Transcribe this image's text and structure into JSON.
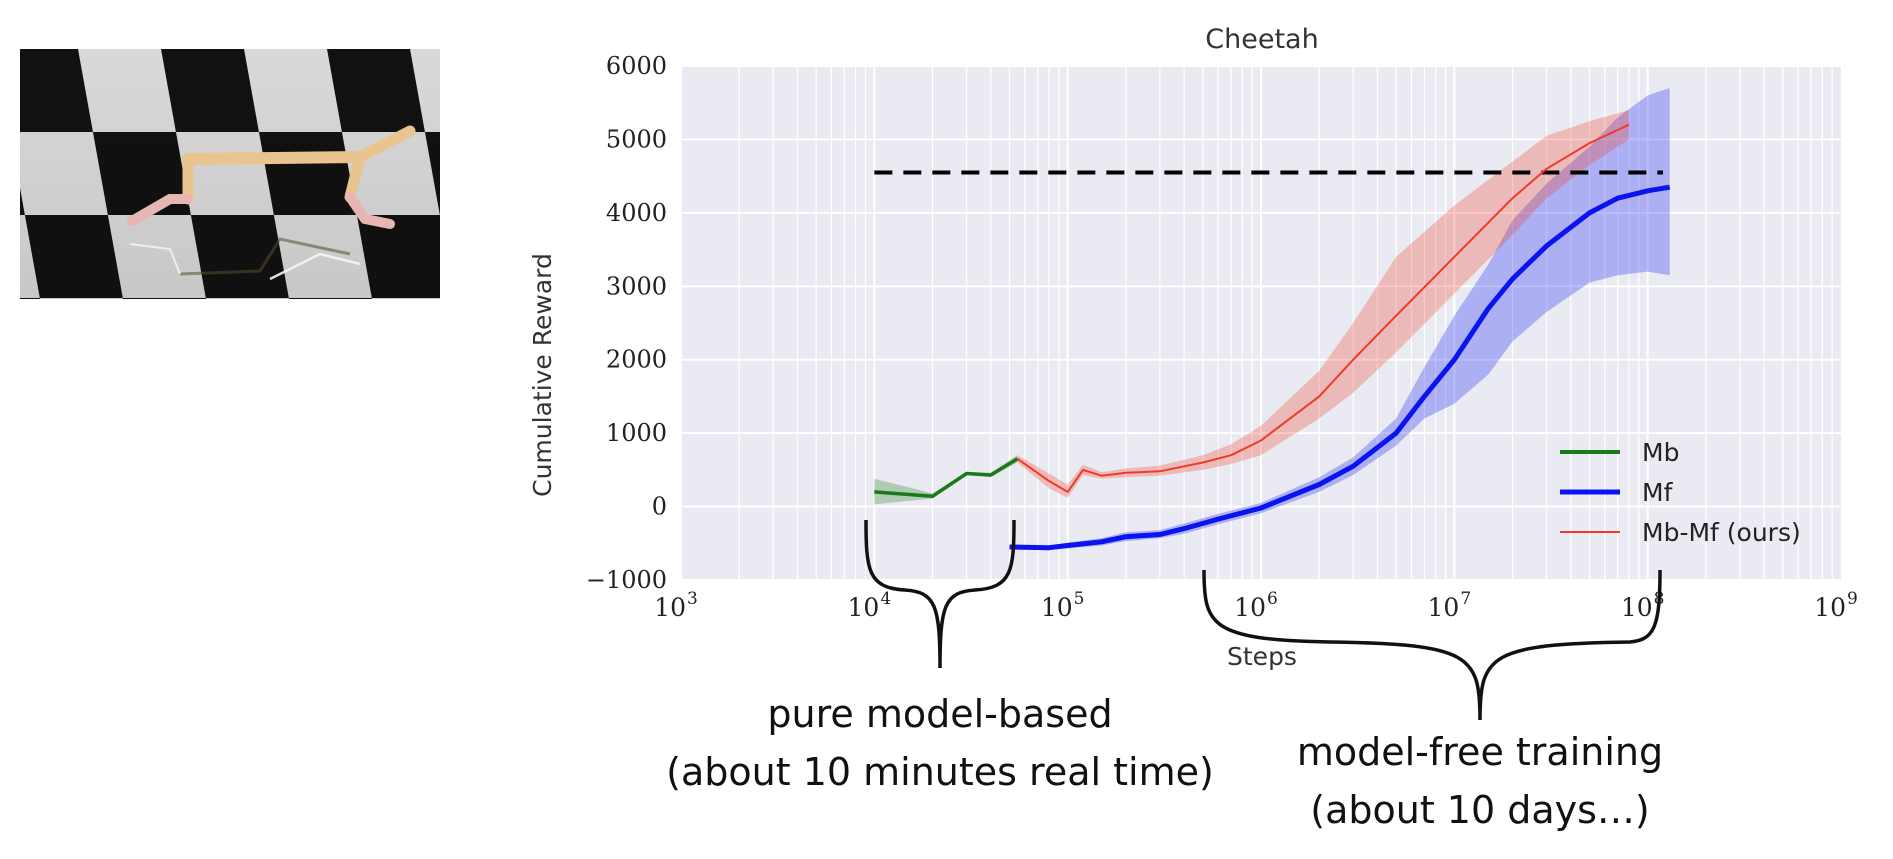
{
  "chart_data": {
    "type": "line",
    "title": "Cheetah",
    "xlabel": "Steps",
    "ylabel": "Cumulative Reward",
    "x_scale": "log",
    "xlim": [
      1000,
      1000000000
    ],
    "ylim": [
      -1000,
      6000
    ],
    "x_ticks": [
      {
        "value": 1000,
        "base": "10",
        "exp": "3"
      },
      {
        "value": 10000,
        "base": "10",
        "exp": "4"
      },
      {
        "value": 100000,
        "base": "10",
        "exp": "5"
      },
      {
        "value": 1000000,
        "base": "10",
        "exp": "6"
      },
      {
        "value": 10000000,
        "base": "10",
        "exp": "7"
      },
      {
        "value": 100000000,
        "base": "10",
        "exp": "8"
      },
      {
        "value": 1000000000,
        "base": "10",
        "exp": "9"
      }
    ],
    "y_ticks": [
      {
        "value": 6000,
        "label": "6000"
      },
      {
        "value": 5000,
        "label": "5000"
      },
      {
        "value": 4000,
        "label": "4000"
      },
      {
        "value": 3000,
        "label": "3000"
      },
      {
        "value": 2000,
        "label": "2000"
      },
      {
        "value": 1000,
        "label": "1000"
      },
      {
        "value": 0,
        "label": "0"
      },
      {
        "value": -1000,
        "label": "−1000"
      }
    ],
    "grid": true,
    "legend_position": "lower-right",
    "reference_line": {
      "y": 4550,
      "x_from": 10000,
      "x_to": 120000000,
      "style": "dashed",
      "color": "#000000"
    },
    "series": [
      {
        "name": "Mb",
        "color": "#1a7a1a",
        "x": [
          10000,
          20000,
          30000,
          40000,
          55000
        ],
        "y": [
          200,
          140,
          450,
          430,
          650
        ],
        "y_low": [
          30,
          110,
          430,
          400,
          600
        ],
        "y_high": [
          380,
          180,
          470,
          460,
          700
        ]
      },
      {
        "name": "Mf",
        "color": "#0a14f0",
        "x": [
          50000,
          80000,
          100000,
          150000,
          200000,
          300000,
          400000,
          600000,
          1000000,
          2000000,
          3000000,
          5000000,
          7000000,
          10000000,
          15000000,
          20000000,
          30000000,
          50000000,
          70000000,
          100000000,
          130000000
        ],
        "y": [
          -550,
          -560,
          -530,
          -480,
          -410,
          -380,
          -300,
          -170,
          -20,
          300,
          550,
          1000,
          1500,
          2000,
          2700,
          3100,
          3550,
          4000,
          4200,
          4300,
          4350
        ],
        "y_low": [
          -580,
          -590,
          -570,
          -530,
          -470,
          -430,
          -370,
          -240,
          -90,
          200,
          430,
          830,
          1200,
          1400,
          1800,
          2250,
          2650,
          3050,
          3150,
          3200,
          3150
        ],
        "y_high": [
          -520,
          -530,
          -490,
          -430,
          -350,
          -320,
          -230,
          -100,
          50,
          400,
          670,
          1200,
          1900,
          2600,
          3300,
          3900,
          4400,
          4900,
          5300,
          5600,
          5700
        ]
      },
      {
        "name": "Mb-Mf (ours)",
        "color": "#f03a28",
        "x": [
          55000,
          80000,
          100000,
          120000,
          150000,
          200000,
          300000,
          500000,
          700000,
          1000000,
          2000000,
          3000000,
          5000000,
          10000000,
          20000000,
          30000000,
          50000000,
          80000000
        ],
        "y": [
          650,
          350,
          200,
          500,
          420,
          460,
          480,
          600,
          700,
          900,
          1500,
          2000,
          2600,
          3400,
          4200,
          4600,
          4950,
          5200
        ],
        "y_low": [
          600,
          250,
          120,
          430,
          380,
          400,
          420,
          500,
          580,
          700,
          1200,
          1550,
          2100,
          2900,
          3700,
          4200,
          4650,
          5000
        ],
        "y_high": [
          700,
          450,
          300,
          570,
          470,
          520,
          560,
          700,
          850,
          1100,
          1850,
          2500,
          3400,
          4100,
          4700,
          5050,
          5250,
          5400
        ]
      }
    ]
  },
  "annotations": {
    "left_line1": "pure model-based",
    "left_line2": "(about 10 minutes real time)",
    "right_line1": "model-free training",
    "right_line2": "(about 10 days…)"
  }
}
